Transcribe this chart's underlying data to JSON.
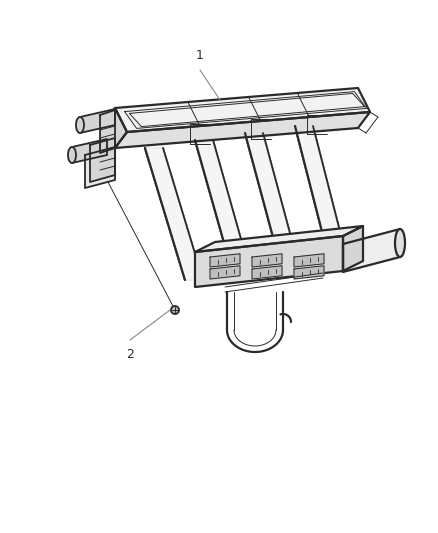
{
  "background_color": "#ffffff",
  "line_color": "#2a2a2a",
  "label_color": "#888888",
  "label1": "1",
  "label2": "2",
  "figsize": [
    4.38,
    5.33
  ],
  "dpi": 100,
  "lw_main": 1.3,
  "lw_thick": 1.6,
  "lw_thin": 0.7,
  "fc_top": "#f2f2f2",
  "fc_front": "#e0e0e0",
  "fc_right": "#d5d5d5",
  "fc_connector": "#dcdcdc",
  "fc_conn_top": "#eeeeee",
  "fc_pin": "#c0c0c0"
}
